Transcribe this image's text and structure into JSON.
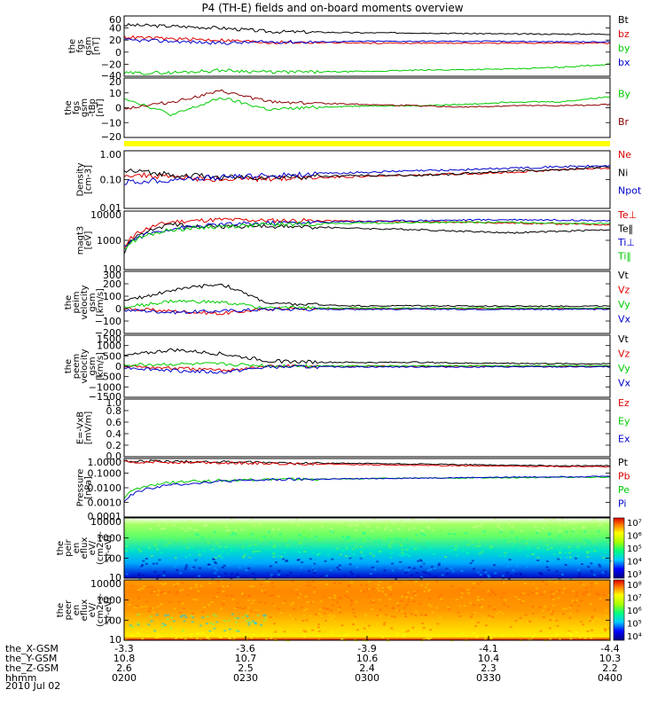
{
  "title": "P4 (TH-E) fields and on-board moments overview",
  "date_label": "2010 Jul 02",
  "ephemeris": {
    "row_labels": [
      "the_X-GSM",
      "the_Y-GSM",
      "the_Z-GSM",
      "hhmm"
    ],
    "columns": [
      [
        "-3.3",
        "10.8",
        "2.6",
        "0200"
      ],
      [
        "-3.6",
        "10.7",
        "2.5",
        "0230"
      ],
      [
        "-3.9",
        "10.6",
        "2.4",
        "0300"
      ],
      [
        "-4.1",
        "10.4",
        "2.3",
        "0330"
      ],
      [
        "-4.4",
        "10.3",
        "2.2",
        "0400"
      ]
    ]
  },
  "colors": {
    "black": "#000000",
    "red": "#dd0000",
    "green": "#00cc00",
    "blue": "#0000cc",
    "darkred": "#8b0000",
    "yellow": "#ffff00"
  },
  "chart_data": [
    {
      "type": "line",
      "ylabel": [
        "the",
        "fgs",
        "gsm",
        "[nT]"
      ],
      "yticks": [
        "60",
        "40",
        "20",
        "0",
        "−20",
        "−40"
      ],
      "ylim": [
        -40,
        60
      ],
      "legend": [
        "Bt",
        "bz",
        "by",
        "bx"
      ],
      "series": [
        {
          "name": "Bt",
          "values": [
            45,
            43,
            40,
            34,
            33,
            32,
            32,
            31,
            30,
            30,
            30
          ]
        },
        {
          "name": "bz",
          "values": [
            25,
            22,
            20,
            16,
            16,
            15,
            15,
            15,
            15,
            15,
            15
          ]
        },
        {
          "name": "by",
          "values": [
            -35,
            -34,
            -30,
            -33,
            -33,
            -32,
            -30,
            -29,
            -28,
            -25,
            -20
          ]
        },
        {
          "name": "bx",
          "values": [
            20,
            18,
            15,
            17,
            17,
            18,
            18,
            18,
            18,
            17,
            17
          ]
        }
      ]
    },
    {
      "type": "line",
      "ylabel": [
        "the",
        "fgs",
        "gsm",
        "-tBp",
        "[nT]"
      ],
      "yticks": [
        "20",
        "10",
        "0",
        "−10",
        "−20"
      ],
      "ylim": [
        -25,
        20
      ],
      "legend": [
        "By",
        "Br"
      ],
      "series": [
        {
          "name": "By",
          "values": [
            5,
            -8,
            5,
            -4,
            -2,
            -1,
            -1,
            0,
            2,
            2,
            6
          ]
        },
        {
          "name": "Br",
          "values": [
            -3,
            2,
            10,
            2,
            1,
            0,
            -1,
            -2,
            -1,
            -1,
            0
          ]
        }
      ]
    },
    {
      "type": "line",
      "ylabel": [
        "Density",
        "[cm-3]"
      ],
      "yticks": [
        "1.00",
        "0.10",
        "0.01"
      ],
      "ylim": [
        0.01,
        1.0
      ],
      "log": true,
      "legend": [
        "Ne",
        "Ni",
        "Npot"
      ],
      "series": [
        {
          "name": "Ne",
          "values": [
            0.15,
            0.12,
            0.1,
            0.11,
            0.12,
            0.13,
            0.14,
            0.16,
            0.18,
            0.22,
            0.25
          ]
        },
        {
          "name": "Ni",
          "values": [
            0.2,
            0.15,
            0.12,
            0.12,
            0.13,
            0.14,
            0.14,
            0.16,
            0.2,
            0.22,
            0.28
          ]
        },
        {
          "name": "Npot",
          "values": [
            0.08,
            0.1,
            0.12,
            0.14,
            0.16,
            0.18,
            0.2,
            0.22,
            0.25,
            0.28,
            0.3
          ]
        }
      ]
    },
    {
      "type": "line",
      "ylabel": [
        "magt3",
        "[eV]"
      ],
      "yticks": [
        "10000",
        "1000",
        "100"
      ],
      "ylim": [
        30,
        12000
      ],
      "log": true,
      "legend": [
        "Te⊥",
        "Te‖",
        "Ti⊥",
        "Ti‖"
      ],
      "series": [
        {
          "name": "Te⊥",
          "values": [
            200,
            4000,
            5000,
            4500,
            4500,
            4200,
            4000,
            3800,
            3500,
            3200,
            3000
          ]
        },
        {
          "name": "Te‖",
          "values": [
            150,
            3000,
            2500,
            2500,
            2300,
            2000,
            1800,
            1500,
            1300,
            1500,
            1800
          ]
        },
        {
          "name": "Ti⊥",
          "values": [
            300,
            2000,
            3000,
            3500,
            3800,
            4200,
            4500,
            4800,
            5000,
            4800,
            4500
          ]
        },
        {
          "name": "Ti‖",
          "values": [
            250,
            1800,
            2500,
            3000,
            3300,
            3500,
            3700,
            3800,
            3800,
            3500,
            3400
          ]
        }
      ]
    },
    {
      "type": "line",
      "ylabel": [
        "the",
        "peim",
        "velocity",
        "gsm",
        "[km/s]"
      ],
      "yticks": [
        "300",
        "200",
        "100",
        "0",
        "−100",
        "−200"
      ],
      "ylim": [
        -200,
        300
      ],
      "legend": [
        "Vt",
        "Vz",
        "Vy",
        "Vx"
      ],
      "series": [
        {
          "name": "Vt",
          "values": [
            60,
            150,
            200,
            40,
            30,
            20,
            25,
            20,
            20,
            20,
            20
          ]
        },
        {
          "name": "Vz",
          "values": [
            0,
            -20,
            -40,
            0,
            0,
            0,
            0,
            0,
            0,
            0,
            0
          ]
        },
        {
          "name": "Vy",
          "values": [
            10,
            60,
            50,
            5,
            5,
            5,
            5,
            5,
            5,
            5,
            5
          ]
        },
        {
          "name": "Vx",
          "values": [
            -10,
            -30,
            -20,
            -5,
            -5,
            -5,
            -5,
            -5,
            -5,
            -5,
            -5
          ]
        }
      ]
    },
    {
      "type": "line",
      "ylabel": [
        "the",
        "peem",
        "velocity",
        "gsm",
        "[km/s]"
      ],
      "yticks": [
        "1500",
        "1000",
        "500",
        "0",
        "−500",
        "−1000",
        "−1500"
      ],
      "ylim": [
        -1500,
        1500
      ],
      "legend": [
        "Vt",
        "Vz",
        "Vy",
        "Vx"
      ],
      "series": [
        {
          "name": "Vt",
          "values": [
            500,
            800,
            600,
            250,
            200,
            180,
            200,
            150,
            150,
            120,
            120
          ]
        },
        {
          "name": "Vz",
          "values": [
            0,
            -100,
            -200,
            0,
            0,
            0,
            0,
            0,
            0,
            0,
            0
          ]
        },
        {
          "name": "Vy",
          "values": [
            50,
            100,
            100,
            20,
            20,
            20,
            20,
            20,
            20,
            20,
            20
          ]
        },
        {
          "name": "Vx",
          "values": [
            -50,
            -200,
            -300,
            -30,
            -30,
            -30,
            -30,
            -30,
            -30,
            -30,
            -30
          ]
        }
      ]
    },
    {
      "type": "line",
      "ylabel": [
        "E=-VxB",
        "[mV/m]"
      ],
      "yticks": [
        "1.0",
        "0.8",
        "0.6",
        "0.4",
        "0.2",
        "0.0"
      ],
      "ylim": [
        0,
        1
      ],
      "legend": [
        "Ez",
        "Ey",
        "Ex"
      ],
      "series": []
    },
    {
      "type": "line",
      "ylabel": [
        "Pressure",
        "[nPa]"
      ],
      "yticks": [
        "1.0000",
        "0.1000",
        "0.0100",
        "0.0010",
        "0.0001"
      ],
      "ylim": [
        0.0001,
        1.5
      ],
      "log": true,
      "legend": [
        "Pt",
        "Pb",
        "Pe",
        "Pi"
      ],
      "series": [
        {
          "name": "Pt",
          "values": [
            1.0,
            0.9,
            0.85,
            0.75,
            0.7,
            0.65,
            0.6,
            0.55,
            0.5,
            0.45,
            0.45
          ]
        },
        {
          "name": "Pb",
          "values": [
            0.9,
            0.8,
            0.75,
            0.65,
            0.6,
            0.55,
            0.5,
            0.45,
            0.42,
            0.4,
            0.38
          ]
        },
        {
          "name": "Pe",
          "values": [
            0.002,
            0.03,
            0.04,
            0.05,
            0.05,
            0.055,
            0.06,
            0.06,
            0.065,
            0.07,
            0.07
          ]
        },
        {
          "name": "Pi",
          "values": [
            0.001,
            0.02,
            0.035,
            0.045,
            0.05,
            0.055,
            0.06,
            0.065,
            0.07,
            0.075,
            0.08
          ]
        }
      ]
    },
    {
      "type": "heatmap",
      "ylabel": [
        "the",
        "peir",
        "en",
        "eflux",
        "eV/",
        "(cm2-s-",
        "sr-eV)"
      ],
      "yticks": [
        "10000",
        "1000",
        "100",
        "10"
      ],
      "colorbar_ticks": [
        "10⁷",
        "10⁶",
        "10⁵",
        "10⁴",
        "10³"
      ],
      "colorbar_exponents": [
        7,
        6,
        5,
        4,
        3
      ]
    },
    {
      "type": "heatmap",
      "ylabel": [
        "the",
        "peer",
        "en",
        "eflux",
        "eV/",
        "(cm2-s-",
        "sr-eV)"
      ],
      "yticks": [
        "10000",
        "1000",
        "100",
        "10"
      ],
      "colorbar_ticks": [
        "10⁸",
        "10⁷",
        "10⁶",
        "10⁵",
        "10⁴"
      ],
      "colorbar_exponents": [
        8,
        7,
        6,
        5,
        4
      ]
    }
  ]
}
